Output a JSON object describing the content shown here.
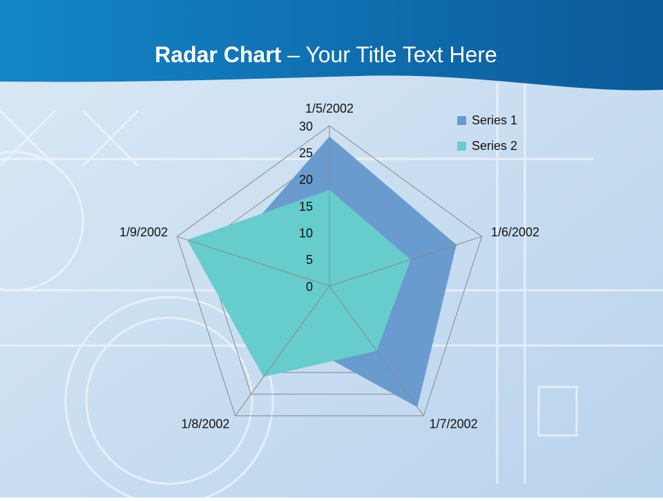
{
  "title_bold": "Radar Chart",
  "title_rest": "– Your Title Text Here",
  "chart_data": {
    "type": "radar",
    "categories": [
      "1/5/2002",
      "1/6/2002",
      "1/7/2002",
      "1/8/2002",
      "1/9/2002"
    ],
    "series": [
      {
        "name": "Series 1",
        "color": "#6a9bcf",
        "values": [
          28,
          25,
          28,
          12,
          20
        ]
      },
      {
        "name": "Series 2",
        "color": "#66cccc",
        "values": [
          18,
          16,
          15,
          21,
          28
        ]
      }
    ],
    "rlim": [
      0,
      30
    ],
    "rticks": [
      0,
      5,
      10,
      15,
      20,
      25,
      30
    ],
    "grid": true,
    "legend": "top-right"
  }
}
